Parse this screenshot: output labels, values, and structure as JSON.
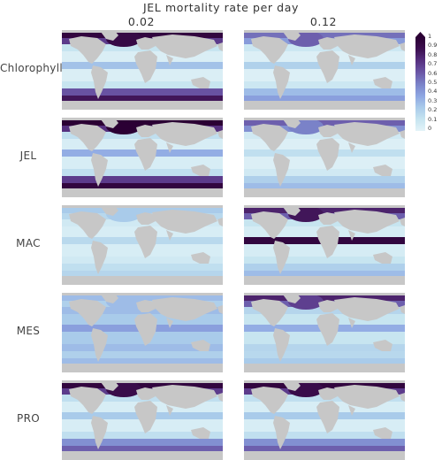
{
  "title": "JEL mortality rate per day",
  "columns": [
    "0.02",
    "0.12"
  ],
  "rows": [
    {
      "label": "Chlorophyll",
      "maps": [
        {
          "mid": 0.12,
          "north_pacific": 0.95,
          "north_atlantic": 0.92,
          "southern": 0.85,
          "equatorial": 0.28,
          "subtropical_gyres": 0.04
        },
        {
          "mid": 0.1,
          "north_pacific": 0.55,
          "north_atlantic": 0.6,
          "southern": 0.4,
          "equatorial": 0.22,
          "subtropical_gyres": 0.03
        }
      ]
    },
    {
      "label": "JEL",
      "maps": [
        {
          "mid": 0.15,
          "north_pacific": 1.0,
          "north_atlantic": 1.0,
          "southern": 0.95,
          "equatorial": 0.35,
          "subtropical_gyres": 0.05
        },
        {
          "mid": 0.08,
          "north_pacific": 0.6,
          "north_atlantic": 0.5,
          "southern": 0.3,
          "equatorial": 0.15,
          "subtropical_gyres": 0.03
        }
      ]
    },
    {
      "label": "MAC",
      "maps": [
        {
          "mid": 0.08,
          "north_pacific": 0.25,
          "north_atlantic": 0.25,
          "southern": 0.2,
          "equatorial": 0.18,
          "subtropical_gyres": 0.05
        },
        {
          "mid": 0.12,
          "north_pacific": 0.8,
          "north_atlantic": 0.85,
          "southern": 0.3,
          "equatorial": 0.95,
          "subtropical_gyres": 0.06
        }
      ]
    },
    {
      "label": "MES",
      "maps": [
        {
          "mid": 0.3,
          "north_pacific": 0.3,
          "north_atlantic": 0.3,
          "southern": 0.3,
          "equatorial": 0.4,
          "subtropical_gyres": 0.25
        },
        {
          "mid": 0.2,
          "north_pacific": 0.8,
          "north_atlantic": 0.7,
          "southern": 0.25,
          "equatorial": 0.35,
          "subtropical_gyres": 0.12
        }
      ]
    },
    {
      "label": "PRO",
      "maps": [
        {
          "mid": 0.15,
          "north_pacific": 0.95,
          "north_atlantic": 0.9,
          "southern": 0.6,
          "equatorial": 0.25,
          "subtropical_gyres": 0.05
        },
        {
          "mid": 0.15,
          "north_pacific": 0.95,
          "north_atlantic": 0.9,
          "southern": 0.6,
          "equatorial": 0.25,
          "subtropical_gyres": 0.05
        }
      ]
    }
  ],
  "colorbar": {
    "ticks": [
      "1",
      "0.9",
      "0.8",
      "0.7",
      "0.6",
      "0.5",
      "0.4",
      "0.3",
      "0.2",
      "0.1",
      "0"
    ],
    "min": 0,
    "max": 1
  },
  "colors": {
    "land": "#c7c7c7",
    "scale": [
      "#e3f3f8",
      "#c6e4f0",
      "#a9cbea",
      "#8ea6e2",
      "#7a82c8",
      "#6a56a6",
      "#56307f",
      "#3c0f4f",
      "#2b0034"
    ]
  }
}
